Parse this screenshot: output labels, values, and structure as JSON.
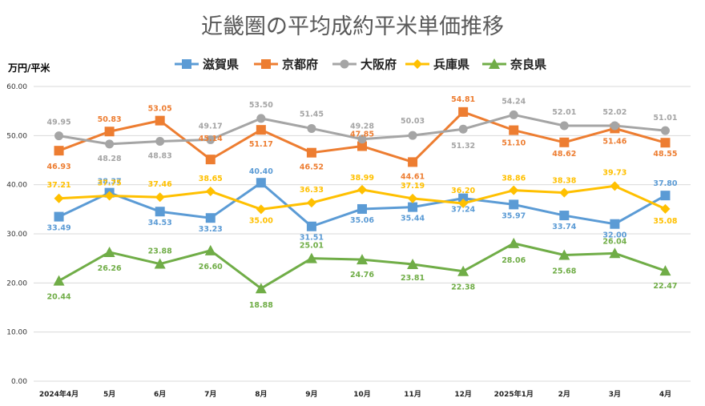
{
  "chart_data": {
    "type": "line",
    "title": "近畿圏の平均成約平米単価推移",
    "ylabel": "万円/平米",
    "xlabel": "",
    "ylim": [
      0,
      60
    ],
    "yticks": [
      "0.00",
      "10.00",
      "20.00",
      "30.00",
      "40.00",
      "50.00",
      "60.00"
    ],
    "grid": true,
    "legend_position": "top",
    "categories": [
      "2024年4月",
      "5月",
      "6月",
      "7月",
      "8月",
      "9月",
      "10月",
      "11月",
      "12月",
      "2025年1月",
      "2月",
      "3月",
      "4月"
    ],
    "series": [
      {
        "name": "滋賀県",
        "color": "#5b9bd5",
        "marker": "square",
        "values": [
          33.49,
          38.37,
          34.53,
          33.23,
          40.4,
          31.51,
          35.06,
          35.44,
          37.24,
          35.97,
          33.74,
          32.0,
          37.8
        ],
        "labels": [
          "33.49",
          "38.37",
          "34.53",
          "33.23",
          "40.40",
          "31.51",
          "35.06",
          "35.44",
          "37.24",
          "35.97",
          "33.74",
          "32.00",
          "37.80"
        ]
      },
      {
        "name": "京都府",
        "color": "#ed7d31",
        "marker": "square",
        "values": [
          46.93,
          50.83,
          53.05,
          45.14,
          51.17,
          46.52,
          47.85,
          44.61,
          54.81,
          51.1,
          48.62,
          51.46,
          48.55
        ],
        "labels": [
          "46.93",
          "50.83",
          "53.05",
          "45.14",
          "51.17",
          "46.52",
          "47.85",
          "44.61",
          "54.81",
          "51.10",
          "48.62",
          "51.46",
          "48.55"
        ]
      },
      {
        "name": "大阪府",
        "color": "#a5a5a5",
        "marker": "circle",
        "values": [
          49.95,
          48.28,
          48.83,
          49.17,
          53.5,
          51.45,
          49.28,
          50.03,
          51.32,
          54.24,
          52.01,
          52.02,
          51.01
        ],
        "labels": [
          "49.95",
          "48.28",
          "48.83",
          "49.17",
          "53.50",
          "51.45",
          "49.28",
          "50.03",
          "51.32",
          "54.24",
          "52.01",
          "52.02",
          "51.01"
        ]
      },
      {
        "name": "兵庫県",
        "color": "#ffc000",
        "marker": "diamond",
        "values": [
          37.21,
          37.75,
          37.46,
          38.65,
          35.0,
          36.33,
          38.99,
          37.19,
          36.2,
          38.86,
          38.38,
          39.73,
          35.08
        ],
        "labels": [
          "37.21",
          "37.75",
          "37.46",
          "38.65",
          "35.00",
          "36.33",
          "38.99",
          "37.19",
          "36.20",
          "38.86",
          "38.38",
          "39.73",
          "35.08"
        ]
      },
      {
        "name": "奈良県",
        "color": "#70ad47",
        "marker": "triangle",
        "values": [
          20.44,
          26.26,
          23.88,
          26.6,
          18.88,
          25.01,
          24.76,
          23.81,
          22.38,
          28.06,
          25.68,
          26.04,
          22.47
        ],
        "labels": [
          "20.44",
          "26.26",
          "23.88",
          "26.60",
          "18.88",
          "25.01",
          "24.76",
          "23.81",
          "22.38",
          "28.06",
          "25.68",
          "26.04",
          "22.47"
        ]
      }
    ]
  }
}
